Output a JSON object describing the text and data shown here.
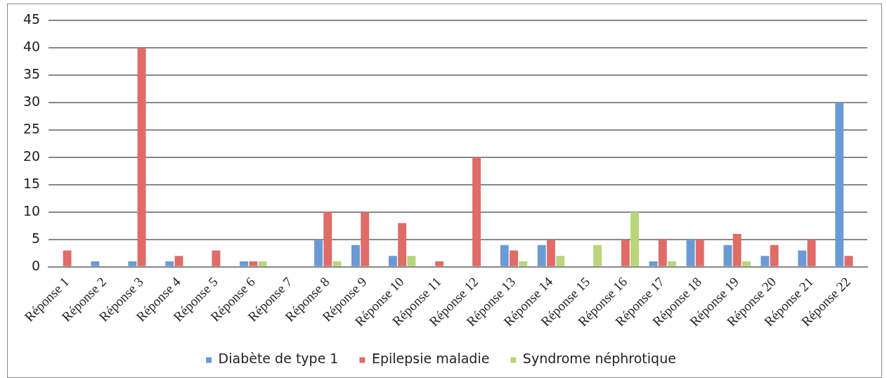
{
  "chart_data": {
    "type": "bar",
    "categories": [
      "Réponse 1",
      "Réponse 2",
      "Réponse 3",
      "Réponse 4",
      "Réponse 5",
      "Réponse 6",
      "Réponse 7",
      "Réponse 8",
      "Réponse 9",
      "Réponse 10",
      "Réponse 11",
      "Réponse 12",
      "Réponse 13",
      "Réponse 14",
      "Réponse 15",
      "Réponse 16",
      "Réponse 17",
      "Réponse 18",
      "Réponse 19",
      "Réponse 20",
      "Réponse 21",
      "Réponse 22"
    ],
    "series": [
      {
        "name": "Diabète de type 1",
        "color": "#6a9ad6",
        "values": [
          0,
          1,
          1,
          1,
          0,
          1,
          0,
          5,
          4,
          2,
          0,
          0,
          4,
          4,
          0,
          0,
          1,
          5,
          4,
          2,
          3,
          30
        ]
      },
      {
        "name": "Epilepsie maladie",
        "color": "#e06b67",
        "values": [
          3,
          0,
          40,
          2,
          3,
          1,
          0,
          10,
          10,
          8,
          1,
          20,
          3,
          5,
          0,
          5,
          5,
          5,
          6,
          4,
          5,
          2
        ]
      },
      {
        "name": "Syndrome néphrotique",
        "color": "#b8d67a",
        "values": [
          0,
          0,
          0,
          0,
          0,
          1,
          0,
          1,
          0,
          2,
          0,
          0,
          1,
          2,
          4,
          10,
          1,
          0,
          1,
          0,
          0,
          0
        ]
      }
    ],
    "ylim": [
      0,
      45
    ],
    "yticks": [
      0,
      5,
      10,
      15,
      20,
      25,
      30,
      35,
      40,
      45
    ],
    "grid": "y",
    "legend": "bottom"
  }
}
